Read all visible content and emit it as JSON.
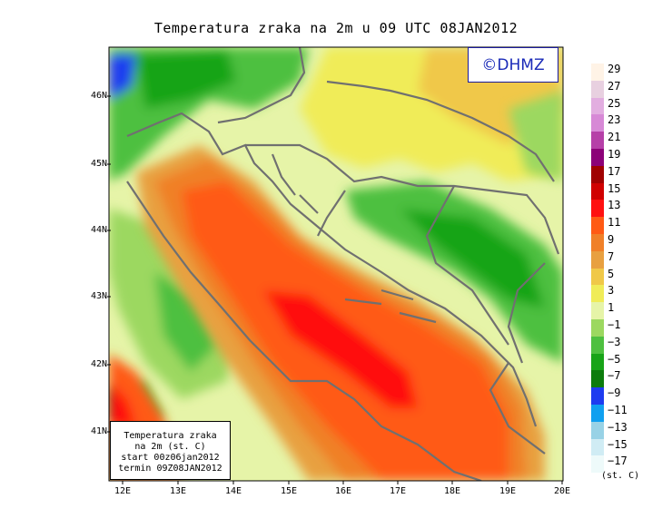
{
  "title": "Temperatura zraka na 2m u 09 UTC 08JAN2012",
  "logo": "©DHMZ",
  "info": {
    "line1": "Temperatura zraka",
    "line2": "na 2m (st. C)",
    "line3": "start 00z06jan2012",
    "line4": "termin 09Z08JAN2012"
  },
  "axes": {
    "lat_labels": [
      "46N",
      "45N",
      "44N",
      "43N",
      "42N",
      "41N"
    ],
    "lon_labels": [
      "12E",
      "13E",
      "14E",
      "15E",
      "16E",
      "17E",
      "18E",
      "19E",
      "20E"
    ]
  },
  "legend": {
    "units": "(st. C)",
    "levels": [
      "29",
      "27",
      "25",
      "23",
      "21",
      "19",
      "17",
      "15",
      "13",
      "11",
      "9",
      "7",
      "5",
      "3",
      "1",
      "−1",
      "−3",
      "−5",
      "−7",
      "−9",
      "−11",
      "−13",
      "−15",
      "−17"
    ],
    "colors": [
      "#fff3e6",
      "#e8d0e0",
      "#e2aee0",
      "#d789d6",
      "#b640a8",
      "#8c0078",
      "#a00000",
      "#d00000",
      "#ff1010",
      "#ff5a14",
      "#f08028",
      "#e8a040",
      "#f0c848",
      "#f0ec58",
      "#e6f4a8",
      "#9cd860",
      "#4ec040",
      "#18a418",
      "#0c7c0c",
      "#1e3cf0",
      "#10a0f0",
      "#98d2e6",
      "#d0ecf4",
      "#eefafa"
    ]
  },
  "colors": {
    "sea_warmest": "#ff1010",
    "sea_warm": "#ff5a14",
    "coast_warm": "#f08028",
    "lowland": "#f0ec58",
    "mountain": "#4ec040",
    "border_line": "#707070"
  }
}
